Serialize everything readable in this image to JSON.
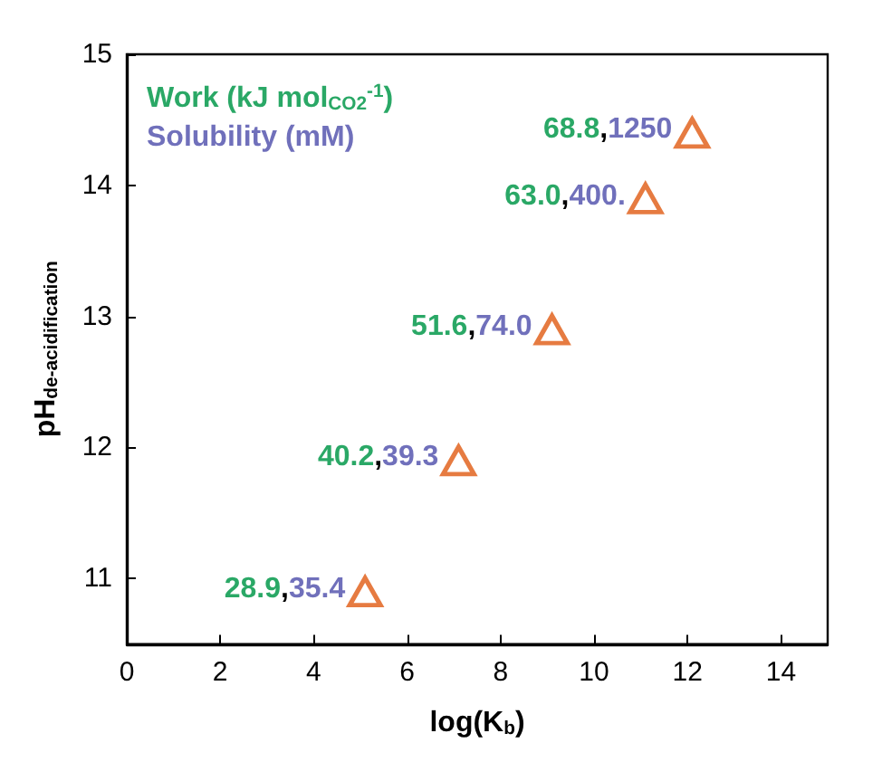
{
  "chart_data": {
    "type": "scatter",
    "xlabel": "log(K$_{b}$)",
    "ylabel": "pH$_{de-acidification}$",
    "annotations": [
      "Work (kJ mol$_{CO2}$$^{-1}$)",
      "Solubility (mM)"
    ],
    "series": [
      {
        "color": "#e05a12",
        "x": [
          5.1,
          7.1,
          9.1,
          11.1,
          12.1
        ],
        "values": [
          10.9,
          11.9,
          12.9,
          13.9,
          14.4
        ],
        "value_labels": [
          "28.9,35.4",
          "40.2,39.3",
          "51.6,74.0",
          "63.0,400.",
          "68.8,1250"
        ]
      }
    ],
    "marker": "triangle",
    "xlim": [
      0,
      15
    ],
    "xticks": [
      0,
      2,
      4,
      6,
      8,
      10,
      12,
      14
    ],
    "ylim": [
      10.5,
      15
    ],
    "yticks": [
      11,
      12,
      13,
      14,
      15
    ],
    "grid": false
  }
}
